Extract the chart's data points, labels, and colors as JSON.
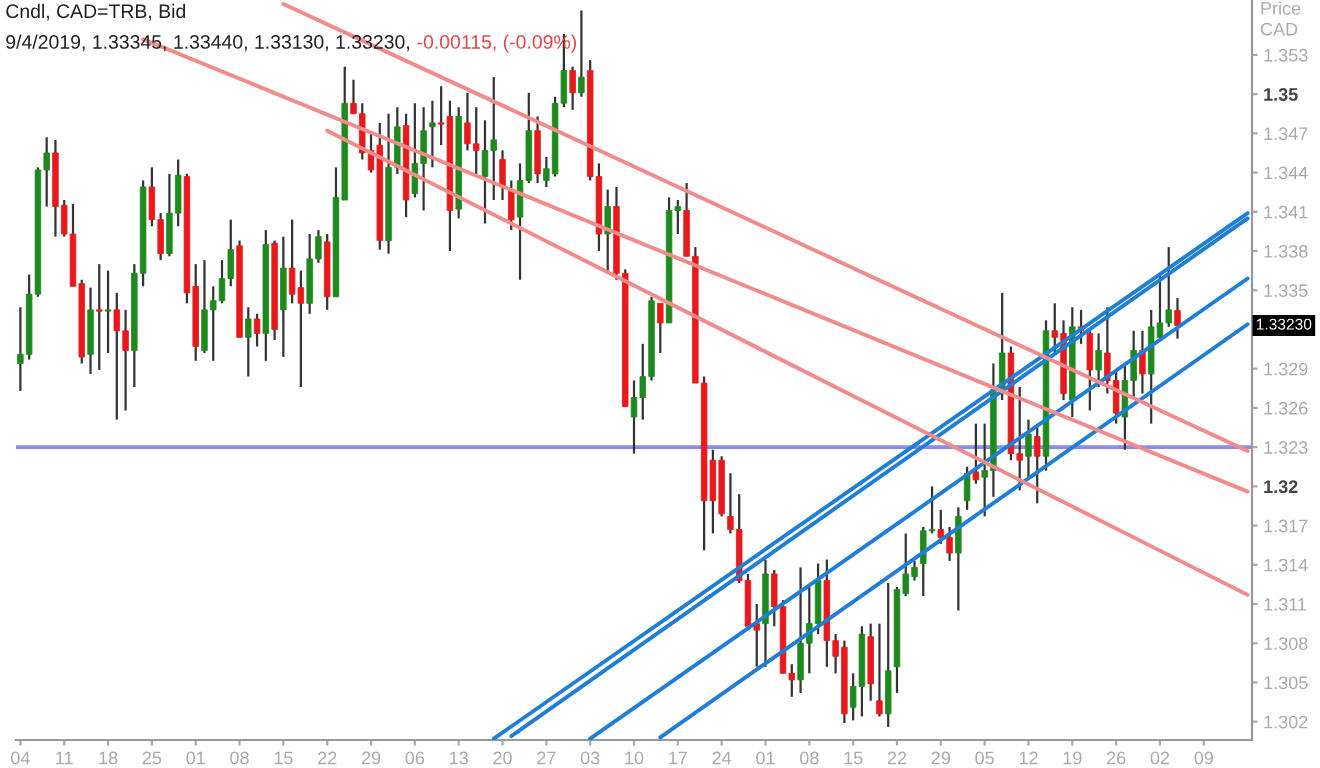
{
  "chart_data": {
    "type": "candlestick",
    "title": "Cndl, CAD=TRB, Bid",
    "subtitle": "9/4/2019, 1.33345, 1.33440, 1.33130, 1.33230,",
    "ylabel": "Price CAD",
    "annotations": [
      "-0.00115, (-0.09%)",
      "1.33230"
    ],
    "categories": [
      "04",
      null,
      null,
      null,
      null,
      "11",
      null,
      null,
      null,
      null,
      "18",
      null,
      null,
      null,
      null,
      "25",
      null,
      null,
      null,
      null,
      "01",
      null,
      null,
      null,
      null,
      "08",
      null,
      null,
      null,
      null,
      "15",
      null,
      null,
      null,
      null,
      "22",
      null,
      null,
      null,
      null,
      "29",
      null,
      null,
      null,
      null,
      "06",
      null,
      null,
      null,
      null,
      "13",
      null,
      null,
      null,
      null,
      "20",
      null,
      null,
      null,
      null,
      "27",
      null,
      null,
      null,
      null,
      "03",
      null,
      null,
      null,
      null,
      "10",
      null,
      null,
      null,
      null,
      "17",
      null,
      null,
      null,
      null,
      "24",
      null,
      null,
      null,
      null,
      "01",
      null,
      null,
      null,
      null,
      "08",
      null,
      null,
      null,
      null,
      "15",
      null,
      null,
      null,
      null,
      "22",
      null,
      null,
      null,
      null,
      "29",
      null,
      null,
      null,
      null,
      "05",
      null,
      null,
      null,
      null,
      "12",
      null,
      null,
      null,
      null,
      "19",
      null,
      null,
      null,
      null,
      "26",
      null,
      null,
      null,
      null,
      "02",
      null,
      null,
      null,
      null,
      "09",
      null,
      null,
      null,
      null,
      null
    ],
    "colors": [
      "#1e8a1e",
      "#1e8a1e",
      "#1e8a1e",
      "#1e8a1e",
      "#e8191c",
      "#e8191c",
      "#e8191c",
      "#e8191c",
      "#1e8a1e",
      "#e8191c",
      "#1e8a1e",
      "#e8191c",
      "#e8191c",
      "#1e8a1e",
      "#1e8a1e",
      "#e8191c",
      "#e8191c",
      "#1e8a1e",
      "#1e8a1e",
      "#e8191c",
      "#e8191c",
      "#1e8a1e",
      "#1e8a1e",
      "#1e8a1e",
      "#1e8a1e",
      "#e8191c",
      "#1e8a1e",
      "#e8191c",
      "#1e8a1e",
      "#e8191c",
      "#1e8a1e",
      "#e8191c",
      "#e8191c",
      "#1e8a1e",
      "#1e8a1e",
      "#e8191c",
      "#1e8a1e",
      "#1e8a1e",
      "#e8191c",
      "#e8191c",
      "#e8191c",
      "#e8191c",
      "#1e8a1e",
      "#1e8a1e",
      "#e8191c",
      "#1e8a1e",
      "#1e8a1e",
      "#1e8a1e",
      "#e8191c",
      "#e8191c",
      "#1e8a1e",
      "#e8191c",
      "#e8191c",
      "#1e8a1e",
      "#1e8a1e",
      "#e8191c",
      "#e8191c",
      "#1e8a1e",
      "#1e8a1e",
      "#e8191c",
      "#1e8a1e",
      "#1e8a1e",
      "#1e8a1e",
      "#e8191c",
      "#1e8a1e",
      "#e8191c",
      "#e8191c",
      "#1e8a1e",
      "#e8191c",
      "#e8191c",
      "#1e8a1e",
      "#1e8a1e",
      "#1e8a1e",
      "#e8191c",
      "#1e8a1e",
      "#1e8a1e",
      "#e8191c",
      "#e8191c",
      "#e8191c",
      "#e8191c",
      "#e8191c",
      "#e8191c",
      "#e8191c",
      "#e8191c",
      "#e8191c",
      "#1e8a1e",
      "#e8191c",
      "#e8191c",
      "#e8191c",
      "#1e8a1e",
      "#1e8a1e",
      "#1e8a1e",
      "#e8191c",
      "#e8191c",
      "#e8191c",
      "#1e8a1e",
      "#1e8a1e",
      "#e8191c",
      "#e8191c",
      "#1e8a1e",
      "#1e8a1e",
      "#1e8a1e",
      "#1e8a1e",
      "#1e8a1e",
      "#1e8a1e",
      "#e8191c",
      "#e8191c",
      "#1e8a1e",
      "#1e8a1e",
      "#e8191c",
      "#1e8a1e",
      "#1e8a1e",
      "#1e8a1e",
      "#e8191c",
      "#e8191c",
      "#1e8a1e",
      "#e8191c",
      "#1e8a1e",
      "#e8191c",
      "#e8191c",
      "#1e8a1e",
      "#e8191c",
      "#e8191c",
      "#1e8a1e",
      "#e8191c",
      "#e8191c",
      "#1e8a1e",
      "#1e8a1e",
      "#e8191c",
      "#1e8a1e",
      "#1e8a1e",
      "#1e8a1e",
      "#e8191c",
      null,
      null,
      null,
      null,
      null,
      null,
      null,
      null
    ],
    "ohlc": [
      [
        1.3294,
        1.3337,
        1.3273,
        1.3301
      ],
      [
        1.3301,
        1.3362,
        1.3297,
        1.3347
      ],
      [
        1.3347,
        1.3444,
        1.3345,
        1.3442
      ],
      [
        1.3442,
        1.3467,
        1.3414,
        1.3455
      ],
      [
        1.3455,
        1.3465,
        1.3391,
        1.3414
      ],
      [
        1.3415,
        1.3419,
        1.3391,
        1.3393
      ],
      [
        1.3393,
        1.3416,
        1.3353,
        1.3353
      ],
      [
        1.3355,
        1.3358,
        1.3294,
        1.3299
      ],
      [
        1.3301,
        1.3352,
        1.3286,
        1.3335
      ],
      [
        1.3335,
        1.337,
        1.3289,
        1.3334
      ],
      [
        1.3334,
        1.3365,
        1.3302,
        1.3335
      ],
      [
        1.3335,
        1.3348,
        1.3251,
        1.3319
      ],
      [
        1.3319,
        1.3335,
        1.3258,
        1.3304
      ],
      [
        1.3304,
        1.337,
        1.3276,
        1.3363
      ],
      [
        1.3363,
        1.3434,
        1.3353,
        1.3429
      ],
      [
        1.3429,
        1.3444,
        1.3399,
        1.3404
      ],
      [
        1.3404,
        1.3409,
        1.3373,
        1.3378
      ],
      [
        1.3378,
        1.3439,
        1.3376,
        1.3409
      ],
      [
        1.3409,
        1.345,
        1.3399,
        1.3438
      ],
      [
        1.3437,
        1.3439,
        1.334,
        1.3348
      ],
      [
        1.3353,
        1.337,
        1.3296,
        1.3307
      ],
      [
        1.3304,
        1.3373,
        1.3302,
        1.3335
      ],
      [
        1.3335,
        1.3353,
        1.3296,
        1.3342
      ],
      [
        1.3342,
        1.3373,
        1.334,
        1.3359
      ],
      [
        1.3359,
        1.3404,
        1.3353,
        1.3381
      ],
      [
        1.3384,
        1.3388,
        1.3314,
        1.3314
      ],
      [
        1.3314,
        1.3337,
        1.3284,
        1.3328
      ],
      [
        1.3328,
        1.3332,
        1.3307,
        1.3317
      ],
      [
        1.3317,
        1.3396,
        1.3296,
        1.3385
      ],
      [
        1.3386,
        1.3388,
        1.3312,
        1.332
      ],
      [
        1.3335,
        1.3391,
        1.3299,
        1.3367
      ],
      [
        1.3367,
        1.3404,
        1.334,
        1.3347
      ],
      [
        1.3352,
        1.3365,
        1.3276,
        1.334
      ],
      [
        1.334,
        1.3393,
        1.3332,
        1.3374
      ],
      [
        1.3374,
        1.3396,
        1.3371,
        1.3391
      ],
      [
        1.3387,
        1.3393,
        1.3335,
        1.3345
      ],
      [
        1.3345,
        1.3444,
        1.3345,
        1.3421
      ],
      [
        1.3419,
        1.3521,
        1.3419,
        1.3493
      ],
      [
        1.3493,
        1.3511,
        1.3485,
        1.3485
      ],
      [
        1.3485,
        1.3493,
        1.345,
        1.3455
      ],
      [
        1.3457,
        1.347,
        1.344,
        1.3442
      ],
      [
        1.3461,
        1.3478,
        1.3381,
        1.3388
      ],
      [
        1.3388,
        1.3485,
        1.3378,
        1.3444
      ],
      [
        1.3444,
        1.349,
        1.3439,
        1.3475
      ],
      [
        1.3476,
        1.3485,
        1.3406,
        1.3419
      ],
      [
        1.3424,
        1.3493,
        1.3421,
        1.3447
      ],
      [
        1.3447,
        1.349,
        1.3411,
        1.3472
      ],
      [
        1.3475,
        1.3495,
        1.3444,
        1.3478
      ],
      [
        1.3478,
        1.3506,
        1.3461,
        1.3477
      ],
      [
        1.3483,
        1.3495,
        1.338,
        1.3411
      ],
      [
        1.3412,
        1.349,
        1.3405,
        1.3483
      ],
      [
        1.3478,
        1.3501,
        1.3457,
        1.3462
      ],
      [
        1.3462,
        1.349,
        1.3439,
        1.3457
      ],
      [
        1.3437,
        1.348,
        1.3401,
        1.3457
      ],
      [
        1.3457,
        1.3513,
        1.3419,
        1.3465
      ],
      [
        1.345,
        1.3457,
        1.3419,
        1.3429
      ],
      [
        1.3427,
        1.3434,
        1.3396,
        1.3404
      ],
      [
        1.3406,
        1.3447,
        1.3358,
        1.3434
      ],
      [
        1.3434,
        1.3501,
        1.3432,
        1.3472
      ],
      [
        1.3472,
        1.3483,
        1.3432,
        1.3439
      ],
      [
        1.3434,
        1.3452,
        1.3429,
        1.3443
      ],
      [
        1.3439,
        1.3498,
        1.3437,
        1.3493
      ],
      [
        1.3493,
        1.3546,
        1.349,
        1.3518
      ],
      [
        1.3518,
        1.3521,
        1.3488,
        1.3501
      ],
      [
        1.3501,
        1.3564,
        1.3498,
        1.3513
      ],
      [
        1.3518,
        1.3526,
        1.3434,
        1.3437
      ],
      [
        1.3437,
        1.3447,
        1.338,
        1.3393
      ],
      [
        1.3393,
        1.3427,
        1.3363,
        1.3414
      ],
      [
        1.3414,
        1.3429,
        1.3358,
        1.3363
      ],
      [
        1.3363,
        1.3366,
        1.3261,
        1.3261
      ],
      [
        1.3253,
        1.3281,
        1.3225,
        1.3268
      ],
      [
        1.3268,
        1.3309,
        1.3251,
        1.3284
      ],
      [
        1.3284,
        1.3345,
        1.3281,
        1.3342
      ],
      [
        1.334,
        1.334,
        1.3302,
        1.3325
      ],
      [
        1.3325,
        1.3421,
        1.3325,
        1.3411
      ],
      [
        1.3411,
        1.3419,
        1.3393,
        1.3414
      ],
      [
        1.3411,
        1.3432,
        1.3376,
        1.3376
      ],
      [
        1.3376,
        1.3383,
        1.3279,
        1.3279
      ],
      [
        1.3279,
        1.3284,
        1.3151,
        1.3189
      ],
      [
        1.322,
        1.3228,
        1.3164,
        1.3189
      ],
      [
        1.322,
        1.3223,
        1.3177,
        1.3179
      ],
      [
        1.3177,
        1.321,
        1.3164,
        1.3167
      ],
      [
        1.3167,
        1.3194,
        1.3126,
        1.3128
      ],
      [
        1.3128,
        1.3133,
        1.3093,
        1.3093
      ],
      [
        1.3095,
        1.311,
        1.3062,
        1.309
      ],
      [
        1.3095,
        1.3144,
        1.3062,
        1.3133
      ],
      [
        1.3133,
        1.3136,
        1.3093,
        1.3108
      ],
      [
        1.3108,
        1.3113,
        1.3057,
        1.3057
      ],
      [
        1.3057,
        1.3064,
        1.3039,
        1.3052
      ],
      [
        1.3052,
        1.3138,
        1.3042,
        1.308
      ],
      [
        1.308,
        1.3123,
        1.3057,
        1.3095
      ],
      [
        1.3095,
        1.3141,
        1.3087,
        1.3128
      ],
      [
        1.3128,
        1.3144,
        1.3062,
        1.3082
      ],
      [
        1.3082,
        1.3087,
        1.3057,
        1.307
      ],
      [
        1.3077,
        1.3082,
        1.3019,
        1.3026
      ],
      [
        1.3031,
        1.3057,
        1.3021,
        1.3047
      ],
      [
        1.3047,
        1.3093,
        1.3024,
        1.3087
      ],
      [
        1.3085,
        1.3095,
        1.3036,
        1.3049
      ],
      [
        1.3036,
        1.3095,
        1.3024,
        1.3026
      ],
      [
        1.3026,
        1.3126,
        1.3016,
        1.3059
      ],
      [
        1.3062,
        1.3123,
        1.3042,
        1.3121
      ],
      [
        1.3118,
        1.3164,
        1.3116,
        1.3133
      ],
      [
        1.3131,
        1.3143,
        1.3128,
        1.3138
      ],
      [
        1.3141,
        1.3169,
        1.3116,
        1.3166
      ],
      [
        1.3166,
        1.32,
        1.3164,
        1.3167
      ],
      [
        1.3167,
        1.3182,
        1.3156,
        1.3161
      ],
      [
        1.3161,
        1.3169,
        1.3143,
        1.3149
      ],
      [
        1.3149,
        1.3184,
        1.3105,
        1.3177
      ],
      [
        1.3189,
        1.3215,
        1.3182,
        1.321
      ],
      [
        1.3211,
        1.3248,
        1.3202,
        1.3205
      ],
      [
        1.3207,
        1.3248,
        1.3177,
        1.3212
      ],
      [
        1.3212,
        1.3294,
        1.3192,
        1.3274
      ],
      [
        1.3271,
        1.3348,
        1.3266,
        1.3302
      ],
      [
        1.3302,
        1.3307,
        1.322,
        1.3225
      ],
      [
        1.3225,
        1.3276,
        1.3197,
        1.322
      ],
      [
        1.3223,
        1.3251,
        1.3207,
        1.324
      ],
      [
        1.3238,
        1.3246,
        1.3187,
        1.3223
      ],
      [
        1.3223,
        1.3327,
        1.3212,
        1.3319
      ],
      [
        1.3319,
        1.334,
        1.3302,
        1.3314
      ],
      [
        1.3317,
        1.3327,
        1.3266,
        1.3271
      ],
      [
        1.3266,
        1.3337,
        1.3253,
        1.3322
      ],
      [
        1.3322,
        1.3335,
        1.3309,
        1.3319
      ],
      [
        1.3317,
        1.3319,
        1.3258,
        1.3289
      ],
      [
        1.3289,
        1.3317,
        1.3276,
        1.3304
      ],
      [
        1.3302,
        1.3337,
        1.3271,
        1.3281
      ],
      [
        1.3281,
        1.3289,
        1.3248,
        1.3256
      ],
      [
        1.3253,
        1.3294,
        1.3228,
        1.3281
      ],
      [
        1.3281,
        1.3319,
        1.3268,
        1.3304
      ],
      [
        1.3304,
        1.3319,
        1.3271,
        1.3286
      ],
      [
        1.3286,
        1.3335,
        1.3248,
        1.3322
      ],
      [
        1.3314,
        1.3363,
        1.3312,
        1.3325
      ],
      [
        1.3325,
        1.3383,
        1.3322,
        1.3335
      ],
      [
        1.33345,
        1.3344,
        1.3313,
        1.3323
      ],
      null,
      null,
      null,
      null,
      null,
      null,
      null,
      null
    ],
    "series": [
      {
        "type": "line",
        "color": "#1f7fd6",
        "values": [
          null,
          null,
          null,
          null,
          null,
          null,
          null,
          null,
          null,
          null,
          null,
          null,
          null,
          null,
          null,
          null,
          null,
          null,
          null,
          null,
          null,
          null,
          null,
          null,
          null,
          null,
          null,
          null,
          null,
          null,
          null,
          null,
          null,
          null,
          null,
          null,
          null,
          null,
          null,
          null,
          null,
          null,
          null,
          null,
          null,
          null,
          null,
          null,
          null,
          null,
          null,
          null,
          null,
          null,
          1.3007,
          null,
          null,
          null,
          null,
          null,
          null,
          null,
          null,
          null,
          null,
          null,
          null,
          null,
          null,
          null,
          null,
          null,
          null,
          null,
          null,
          null,
          null,
          null,
          null,
          null,
          null,
          null,
          null,
          null,
          null,
          null,
          null,
          null,
          null,
          null,
          null,
          null,
          null,
          null,
          null,
          null,
          null,
          null,
          null,
          null,
          null,
          null,
          null,
          null,
          null,
          null,
          null,
          null,
          null,
          null,
          null,
          null,
          null,
          null,
          null,
          null,
          null,
          null,
          null,
          null,
          null,
          null,
          null,
          null,
          null,
          null,
          null,
          null,
          null,
          null,
          null,
          null,
          null,
          null,
          null,
          null,
          null,
          null,
          null,
          null,
          1.3409
        ]
      },
      {
        "type": "line",
        "color": "#1f7fd6",
        "values": [
          null,
          null,
          null,
          null,
          null,
          null,
          null,
          null,
          null,
          null,
          null,
          null,
          null,
          null,
          null,
          null,
          null,
          null,
          null,
          null,
          null,
          null,
          null,
          null,
          null,
          null,
          null,
          null,
          null,
          null,
          null,
          null,
          null,
          null,
          null,
          null,
          null,
          null,
          null,
          null,
          null,
          null,
          null,
          null,
          null,
          null,
          null,
          null,
          null,
          null,
          null,
          null,
          null,
          null,
          null,
          null,
          1.3009,
          null,
          null,
          null,
          null,
          null,
          null,
          null,
          null,
          null,
          null,
          null,
          null,
          null,
          null,
          null,
          null,
          null,
          null,
          null,
          null,
          null,
          null,
          null,
          null,
          null,
          null,
          null,
          null,
          null,
          null,
          null,
          null,
          null,
          null,
          null,
          null,
          null,
          null,
          null,
          null,
          null,
          null,
          null,
          null,
          null,
          null,
          null,
          null,
          null,
          null,
          null,
          null,
          null,
          null,
          null,
          null,
          null,
          null,
          null,
          null,
          null,
          null,
          null,
          null,
          null,
          null,
          null,
          null,
          null,
          null,
          null,
          null,
          null,
          null,
          null,
          null,
          null,
          null,
          null,
          null,
          null,
          null,
          null,
          1.3405
        ]
      },
      {
        "type": "line",
        "color": "#1f7fd6",
        "values": [
          null,
          null,
          null,
          null,
          null,
          null,
          null,
          null,
          null,
          null,
          null,
          null,
          null,
          null,
          null,
          null,
          null,
          null,
          null,
          null,
          null,
          null,
          null,
          null,
          null,
          null,
          null,
          null,
          null,
          null,
          null,
          null,
          null,
          null,
          null,
          null,
          null,
          null,
          null,
          null,
          null,
          null,
          null,
          null,
          null,
          null,
          null,
          null,
          null,
          null,
          null,
          null,
          null,
          null,
          null,
          null,
          null,
          null,
          null,
          null,
          null,
          null,
          null,
          null,
          null,
          1.3007,
          null,
          null,
          null,
          null,
          null,
          null,
          null,
          null,
          null,
          null,
          null,
          null,
          null,
          null,
          null,
          null,
          null,
          null,
          null,
          null,
          null,
          null,
          null,
          null,
          null,
          null,
          null,
          null,
          null,
          null,
          null,
          null,
          null,
          null,
          null,
          null,
          null,
          null,
          null,
          null,
          null,
          null,
          null,
          null,
          null,
          null,
          null,
          null,
          null,
          null,
          null,
          null,
          null,
          null,
          null,
          null,
          null,
          null,
          null,
          null,
          null,
          null,
          null,
          null,
          null,
          null,
          null,
          null,
          null,
          null,
          null,
          null,
          null,
          null,
          1.3359
        ]
      },
      {
        "type": "line",
        "color": "#1f7fd6",
        "values": [
          null,
          null,
          null,
          null,
          null,
          null,
          null,
          null,
          null,
          null,
          null,
          null,
          null,
          null,
          null,
          null,
          null,
          null,
          null,
          null,
          null,
          null,
          null,
          null,
          null,
          null,
          null,
          null,
          null,
          null,
          null,
          null,
          null,
          null,
          null,
          null,
          null,
          null,
          null,
          null,
          null,
          null,
          null,
          null,
          null,
          null,
          null,
          null,
          null,
          null,
          null,
          null,
          null,
          null,
          null,
          null,
          null,
          null,
          null,
          null,
          null,
          null,
          null,
          null,
          null,
          null,
          null,
          null,
          null,
          null,
          null,
          null,
          null,
          1.3008,
          null,
          null,
          null,
          null,
          null,
          null,
          null,
          null,
          null,
          null,
          null,
          null,
          null,
          null,
          null,
          null,
          null,
          null,
          null,
          null,
          null,
          null,
          null,
          null,
          null,
          null,
          null,
          null,
          null,
          null,
          null,
          null,
          null,
          null,
          null,
          null,
          null,
          null,
          null,
          null,
          null,
          null,
          null,
          null,
          null,
          null,
          null,
          null,
          null,
          null,
          null,
          null,
          null,
          null,
          null,
          null,
          null,
          null,
          null,
          null,
          null,
          null,
          null,
          null,
          null,
          null,
          1.3324
        ]
      },
      {
        "type": "line",
        "color": "#f28b8b",
        "values": [
          null,
          null,
          null,
          null,
          null,
          null,
          null,
          null,
          null,
          null,
          null,
          null,
          null,
          null,
          null,
          null,
          null,
          null,
          null,
          null,
          null,
          null,
          null,
          null,
          null,
          null,
          null,
          null,
          null,
          null,
          1.3569,
          null,
          null,
          null,
          null,
          null,
          null,
          null,
          null,
          null,
          null,
          null,
          null,
          null,
          null,
          null,
          null,
          null,
          null,
          null,
          null,
          null,
          null,
          null,
          null,
          null,
          null,
          null,
          null,
          null,
          null,
          null,
          null,
          null,
          null,
          null,
          null,
          null,
          null,
          null,
          null,
          null,
          null,
          null,
          null,
          null,
          null,
          null,
          null,
          null,
          null,
          null,
          null,
          null,
          null,
          null,
          null,
          null,
          null,
          null,
          null,
          null,
          null,
          null,
          null,
          null,
          null,
          null,
          null,
          null,
          null,
          null,
          null,
          null,
          null,
          null,
          null,
          null,
          null,
          null,
          null,
          null,
          null,
          null,
          null,
          null,
          null,
          null,
          null,
          null,
          null,
          null,
          null,
          null,
          null,
          null,
          null,
          null,
          null,
          null,
          null,
          null,
          null,
          null,
          null,
          null,
          null,
          null,
          null,
          null,
          1.3227
        ]
      },
      {
        "type": "line",
        "color": "#f28b8b",
        "values": [
          null,
          null,
          null,
          null,
          null,
          null,
          null,
          null,
          null,
          null,
          null,
          null,
          null,
          null,
          1.3542,
          null,
          null,
          null,
          null,
          null,
          null,
          null,
          null,
          null,
          null,
          null,
          null,
          null,
          null,
          null,
          null,
          null,
          null,
          null,
          null,
          null,
          null,
          null,
          null,
          null,
          null,
          null,
          null,
          null,
          null,
          null,
          null,
          null,
          null,
          null,
          null,
          null,
          null,
          null,
          null,
          null,
          null,
          null,
          null,
          null,
          null,
          null,
          null,
          null,
          null,
          null,
          null,
          null,
          null,
          null,
          null,
          null,
          null,
          null,
          null,
          null,
          null,
          null,
          null,
          null,
          null,
          null,
          null,
          null,
          null,
          null,
          null,
          null,
          null,
          null,
          null,
          null,
          null,
          null,
          null,
          null,
          null,
          null,
          null,
          null,
          null,
          null,
          null,
          null,
          null,
          null,
          null,
          null,
          null,
          null,
          null,
          null,
          null,
          null,
          null,
          null,
          null,
          null,
          null,
          null,
          null,
          null,
          null,
          null,
          null,
          null,
          null,
          null,
          null,
          null,
          null,
          null,
          null,
          null,
          null,
          null,
          null,
          null,
          null,
          null,
          1.3196
        ]
      },
      {
        "type": "line",
        "color": "#f28b8b",
        "values": [
          null,
          null,
          null,
          null,
          null,
          null,
          null,
          null,
          null,
          null,
          null,
          null,
          null,
          null,
          null,
          null,
          null,
          null,
          null,
          null,
          null,
          null,
          null,
          null,
          null,
          null,
          null,
          null,
          null,
          null,
          null,
          null,
          null,
          null,
          null,
          1.3472,
          null,
          null,
          null,
          null,
          null,
          null,
          null,
          null,
          null,
          null,
          null,
          null,
          null,
          null,
          null,
          null,
          null,
          null,
          null,
          null,
          null,
          null,
          null,
          null,
          null,
          null,
          null,
          null,
          null,
          null,
          null,
          null,
          null,
          null,
          null,
          null,
          null,
          null,
          null,
          null,
          null,
          null,
          null,
          null,
          null,
          null,
          null,
          null,
          null,
          null,
          null,
          null,
          null,
          null,
          null,
          null,
          null,
          null,
          null,
          null,
          null,
          null,
          null,
          null,
          null,
          null,
          null,
          null,
          null,
          null,
          null,
          null,
          null,
          null,
          null,
          null,
          null,
          null,
          null,
          null,
          null,
          null,
          null,
          null,
          null,
          null,
          null,
          null,
          null,
          null,
          null,
          null,
          null,
          null,
          null,
          null,
          null,
          null,
          null,
          null,
          null,
          null,
          null,
          null,
          1.3117
        ]
      }
    ],
    "ref_lines": [
      {
        "axis": "y",
        "value": 1.323,
        "color": "#8a8af2"
      }
    ],
    "ylim": [
      1.3006,
      1.3572
    ],
    "yticks": [
      1.302,
      1.305,
      1.308,
      1.311,
      1.314,
      1.317,
      1.32,
      1.323,
      1.326,
      1.329,
      1.335,
      1.338,
      1.341,
      1.344,
      1.347,
      1.35,
      1.353
    ]
  }
}
